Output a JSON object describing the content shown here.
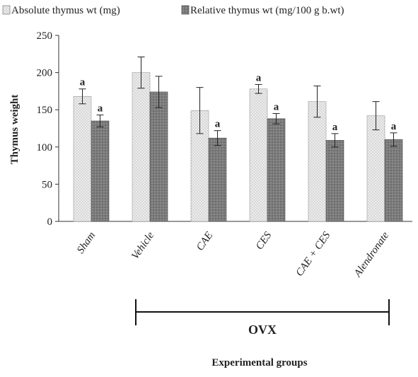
{
  "chart_data": {
    "type": "bar",
    "categories": [
      "Sham",
      "Vehicle",
      "CAE",
      "CES",
      "CAE + CES",
      "Alendronate"
    ],
    "series": [
      {
        "name": "Absolute thymus wt (mg)",
        "values": [
          168,
          200,
          149,
          178,
          161,
          142
        ],
        "errors": [
          10,
          21,
          31,
          6,
          21,
          19
        ],
        "significance": [
          "a",
          "",
          "",
          "a",
          "",
          ""
        ],
        "color": "#e6e6e6"
      },
      {
        "name": "Relative thymus wt (mg/100 g b.wt)",
        "values": [
          135,
          174,
          112,
          138,
          109,
          110
        ],
        "errors": [
          8,
          21,
          10,
          7,
          9,
          9
        ],
        "significance": [
          "a",
          "",
          "a",
          "a",
          "a",
          "a"
        ],
        "color": "#7a7a7a"
      }
    ],
    "ylabel": "Thymus weight",
    "xlabel": "Experimental groups",
    "ylim": [
      0,
      250
    ],
    "yticks": [
      0,
      50,
      100,
      150,
      200,
      250
    ],
    "grid": false,
    "legend": "top",
    "group_bracket": {
      "label": "OVX",
      "from": "Vehicle",
      "to": "Alendronate"
    }
  }
}
